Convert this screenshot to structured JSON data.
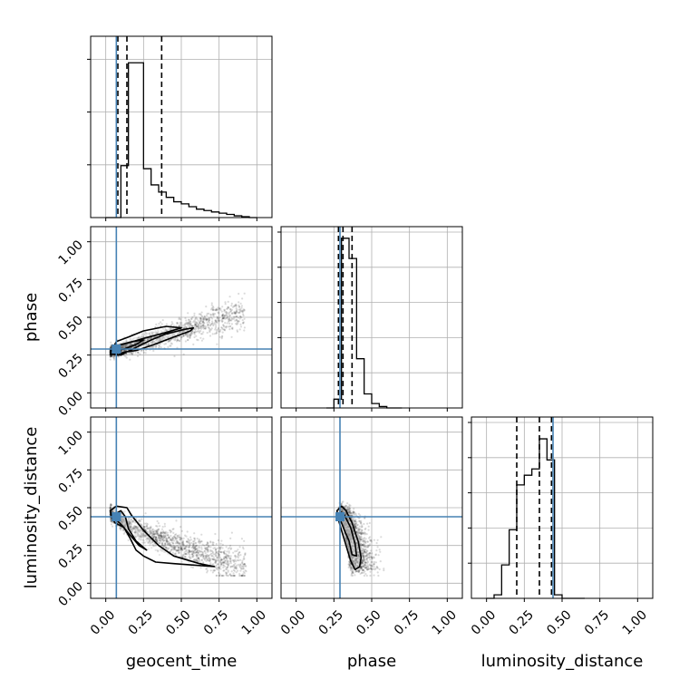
{
  "chart_data": {
    "type": "corner",
    "parameters": [
      "geocent_time",
      "phase",
      "luminosity_distance"
    ],
    "axis_range": [
      -0.1,
      1.1
    ],
    "ticks": [
      0.0,
      0.25,
      0.5,
      0.75,
      1.0
    ],
    "tick_labels": [
      "0.00",
      "0.25",
      "0.50",
      "0.75",
      "1.00"
    ],
    "truth_values": [
      0.07,
      0.29,
      0.44
    ],
    "truth_color": "#4682b4",
    "grid": true,
    "histograms": [
      {
        "parameter": "geocent_time",
        "bin_edges": [
          0.0,
          0.05,
          0.1,
          0.15,
          0.2,
          0.25,
          0.3,
          0.35,
          0.4,
          0.45,
          0.5,
          0.55,
          0.6,
          0.65,
          0.7,
          0.75,
          0.8,
          0.85,
          0.9,
          0.95,
          1.0
        ],
        "counts": [
          0.0,
          0.0,
          0.295,
          0.88,
          0.88,
          0.278,
          0.186,
          0.145,
          0.115,
          0.09,
          0.078,
          0.062,
          0.048,
          0.04,
          0.032,
          0.025,
          0.018,
          0.01,
          0.005,
          0.0
        ],
        "y_ticks": [
          0.3,
          0.6,
          0.9
        ],
        "quantiles": [
          0.08,
          0.14,
          0.37
        ]
      },
      {
        "parameter": "phase",
        "bin_edges": [
          0.2,
          0.25,
          0.3,
          0.35,
          0.4,
          0.45,
          0.5,
          0.55,
          0.6,
          0.65,
          0.7
        ],
        "counts": [
          0.0,
          0.05,
          0.965,
          0.85,
          0.28,
          0.08,
          0.025,
          0.008,
          0.0,
          0.0
        ],
        "y_ticks": [
          0.2,
          0.4,
          0.6,
          0.8,
          1.0
        ],
        "quantiles": [
          0.28,
          0.31,
          0.37
        ]
      },
      {
        "parameter": "luminosity_distance",
        "bin_edges": [
          0.0,
          0.05,
          0.1,
          0.15,
          0.2,
          0.25,
          0.3,
          0.35,
          0.4,
          0.45,
          0.5,
          0.55,
          0.6,
          0.65
        ],
        "counts": [
          0.0,
          0.02,
          0.19,
          0.39,
          0.645,
          0.7,
          0.736,
          0.907,
          0.787,
          0.02,
          0.0,
          0.0,
          0.0
        ],
        "y_ticks": [
          0.2,
          0.4,
          0.6,
          0.8,
          1.0
        ],
        "quantiles": [
          0.2,
          0.35,
          0.43
        ]
      }
    ],
    "scatter_panels": [
      {
        "x_parameter": "geocent_time",
        "y_parameter": "phase",
        "correlation": "positive",
        "x_extent": [
          0.0,
          0.97
        ],
        "y_extent": [
          0.22,
          0.66
        ],
        "contours": [
          [
            [
              0.03,
              0.26
            ],
            [
              0.1,
              0.25
            ],
            [
              0.2,
              0.3
            ],
            [
              0.3,
              0.35
            ],
            [
              0.4,
              0.39
            ],
            [
              0.52,
              0.42
            ],
            [
              0.58,
              0.43
            ],
            [
              0.56,
              0.41
            ],
            [
              0.45,
              0.37
            ],
            [
              0.32,
              0.32
            ],
            [
              0.2,
              0.28
            ],
            [
              0.12,
              0.27
            ],
            [
              0.08,
              0.25
            ],
            [
              0.05,
              0.3
            ],
            [
              0.07,
              0.34
            ],
            [
              0.15,
              0.37
            ],
            [
              0.25,
              0.41
            ],
            [
              0.4,
              0.44
            ],
            [
              0.5,
              0.43
            ],
            [
              0.4,
              0.4
            ],
            [
              0.25,
              0.36
            ],
            [
              0.15,
              0.33
            ],
            [
              0.08,
              0.31
            ],
            [
              0.04,
              0.29
            ]
          ],
          [
            [
              0.05,
              0.28
            ],
            [
              0.12,
              0.29
            ],
            [
              0.2,
              0.32
            ],
            [
              0.25,
              0.35
            ],
            [
              0.18,
              0.34
            ],
            [
              0.1,
              0.32
            ],
            [
              0.06,
              0.3
            ]
          ]
        ]
      },
      {
        "x_parameter": "geocent_time",
        "y_parameter": "luminosity_distance",
        "correlation": "negative",
        "x_extent": [
          0.0,
          0.97
        ],
        "y_extent": [
          0.05,
          0.57
        ],
        "contours": [
          [
            [
              0.03,
              0.48
            ],
            [
              0.07,
              0.51
            ],
            [
              0.14,
              0.5
            ],
            [
              0.17,
              0.45
            ],
            [
              0.25,
              0.35
            ],
            [
              0.35,
              0.25
            ],
            [
              0.45,
              0.18
            ],
            [
              0.62,
              0.13
            ],
            [
              0.72,
              0.11
            ],
            [
              0.58,
              0.12
            ],
            [
              0.45,
              0.13
            ],
            [
              0.33,
              0.14
            ],
            [
              0.25,
              0.18
            ],
            [
              0.2,
              0.22
            ],
            [
              0.16,
              0.3
            ],
            [
              0.12,
              0.37
            ],
            [
              0.06,
              0.4
            ],
            [
              0.04,
              0.44
            ]
          ],
          [
            [
              0.05,
              0.45
            ],
            [
              0.1,
              0.48
            ],
            [
              0.13,
              0.44
            ],
            [
              0.15,
              0.36
            ],
            [
              0.2,
              0.28
            ],
            [
              0.27,
              0.22
            ],
            [
              0.22,
              0.25
            ],
            [
              0.16,
              0.32
            ],
            [
              0.11,
              0.38
            ],
            [
              0.07,
              0.42
            ]
          ]
        ]
      },
      {
        "x_parameter": "phase",
        "y_parameter": "luminosity_distance",
        "correlation": "negative",
        "x_extent": [
          0.24,
          0.58
        ],
        "y_extent": [
          0.05,
          0.57
        ],
        "contours": [
          [
            [
              0.27,
              0.48
            ],
            [
              0.3,
              0.51
            ],
            [
              0.33,
              0.48
            ],
            [
              0.37,
              0.4
            ],
            [
              0.41,
              0.28
            ],
            [
              0.43,
              0.17
            ],
            [
              0.42,
              0.11
            ],
            [
              0.39,
              0.09
            ],
            [
              0.36,
              0.15
            ],
            [
              0.33,
              0.25
            ],
            [
              0.3,
              0.35
            ],
            [
              0.28,
              0.42
            ]
          ],
          [
            [
              0.28,
              0.44
            ],
            [
              0.3,
              0.47
            ],
            [
              0.32,
              0.45
            ],
            [
              0.36,
              0.37
            ],
            [
              0.39,
              0.26
            ],
            [
              0.4,
              0.18
            ],
            [
              0.37,
              0.19
            ],
            [
              0.35,
              0.28
            ],
            [
              0.32,
              0.35
            ],
            [
              0.3,
              0.4
            ]
          ]
        ]
      }
    ]
  }
}
